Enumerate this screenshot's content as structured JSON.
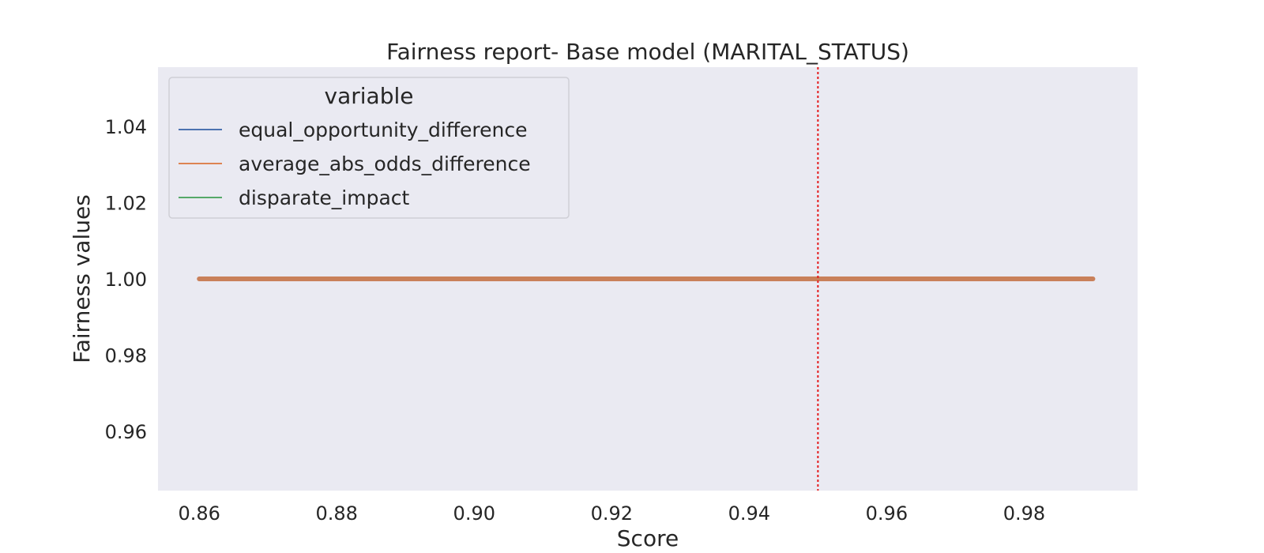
{
  "chart_data": {
    "type": "line",
    "title": "Fairness report- Base model (MARITAL_STATUS)",
    "xlabel": "Score",
    "ylabel": "Fairness values",
    "xlim": [
      0.854,
      0.9965
    ],
    "ylim": [
      0.9445,
      1.0555
    ],
    "x_ticks": [
      "0.86",
      "0.88",
      "0.90",
      "0.92",
      "0.94",
      "0.96",
      "0.98"
    ],
    "y_ticks": [
      "0.96",
      "0.98",
      "1.00",
      "1.02",
      "1.04"
    ],
    "grid": false,
    "legend": {
      "title": "variable",
      "placement": "top-left"
    },
    "series": [
      {
        "name": "equal_opportunity_difference",
        "color": "#4c72b0",
        "x": [
          0.86,
          0.99
        ],
        "y": [
          1.0,
          1.0
        ]
      },
      {
        "name": "average_abs_odds_difference",
        "color": "#dd8452",
        "x": [
          0.86,
          0.99
        ],
        "y": [
          1.0,
          1.0
        ]
      },
      {
        "name": "disparate_impact",
        "color": "#55a868",
        "x": [
          0.86,
          0.99
        ],
        "y": [
          1.0,
          1.0
        ]
      }
    ],
    "plotted_line": {
      "color": "#c9805a",
      "x": [
        0.86,
        0.99
      ],
      "y": [
        1.0,
        1.0
      ]
    },
    "reference_line": {
      "orientation": "vertical",
      "x": 0.95,
      "color": "#e41a1c",
      "style": "dotted"
    },
    "plot_background": "#eaeaf2"
  }
}
